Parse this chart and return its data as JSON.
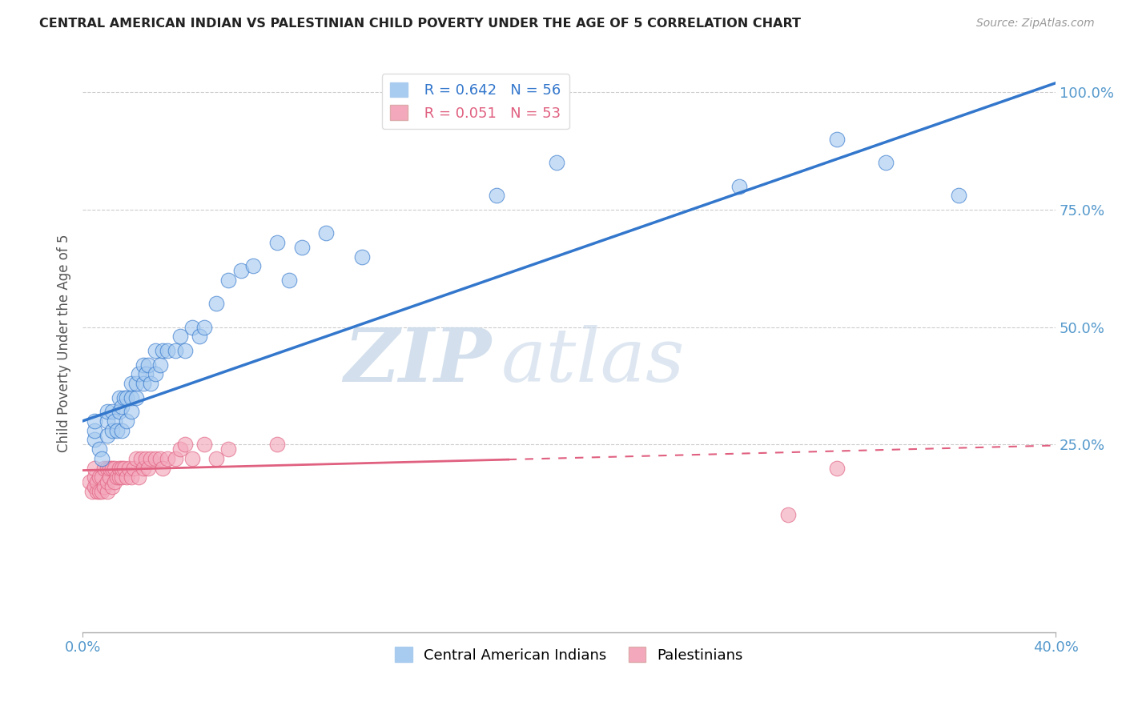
{
  "title": "CENTRAL AMERICAN INDIAN VS PALESTINIAN CHILD POVERTY UNDER THE AGE OF 5 CORRELATION CHART",
  "source": "Source: ZipAtlas.com",
  "ylabel": "Child Poverty Under the Age of 5",
  "xlim": [
    0.0,
    0.4
  ],
  "ylim": [
    -0.15,
    1.08
  ],
  "xtick_labels": [
    "0.0%",
    "40.0%"
  ],
  "xtick_positions": [
    0.0,
    0.4
  ],
  "ytick_labels": [
    "25.0%",
    "50.0%",
    "75.0%",
    "100.0%"
  ],
  "ytick_positions": [
    0.25,
    0.5,
    0.75,
    1.0
  ],
  "blue_color": "#A8CBF0",
  "pink_color": "#F4A8BC",
  "blue_line_color": "#3377CC",
  "pink_line_color": "#E06080",
  "legend_blue_R": "R = 0.642",
  "legend_blue_N": "N = 56",
  "legend_pink_R": "R = 0.051",
  "legend_pink_N": "N = 53",
  "watermark_zip": "ZIP",
  "watermark_atlas": "atlas",
  "blue_scatter_x": [
    0.005,
    0.005,
    0.005,
    0.007,
    0.008,
    0.01,
    0.01,
    0.01,
    0.012,
    0.012,
    0.013,
    0.014,
    0.015,
    0.015,
    0.016,
    0.016,
    0.017,
    0.018,
    0.018,
    0.02,
    0.02,
    0.02,
    0.022,
    0.022,
    0.023,
    0.025,
    0.025,
    0.026,
    0.027,
    0.028,
    0.03,
    0.03,
    0.032,
    0.033,
    0.035,
    0.038,
    0.04,
    0.042,
    0.045,
    0.048,
    0.05,
    0.055,
    0.06,
    0.065,
    0.07,
    0.08,
    0.085,
    0.09,
    0.1,
    0.115,
    0.17,
    0.195,
    0.27,
    0.31,
    0.33,
    0.36
  ],
  "blue_scatter_y": [
    0.26,
    0.28,
    0.3,
    0.24,
    0.22,
    0.27,
    0.3,
    0.32,
    0.28,
    0.32,
    0.3,
    0.28,
    0.32,
    0.35,
    0.28,
    0.33,
    0.35,
    0.3,
    0.35,
    0.32,
    0.35,
    0.38,
    0.35,
    0.38,
    0.4,
    0.38,
    0.42,
    0.4,
    0.42,
    0.38,
    0.4,
    0.45,
    0.42,
    0.45,
    0.45,
    0.45,
    0.48,
    0.45,
    0.5,
    0.48,
    0.5,
    0.55,
    0.6,
    0.62,
    0.63,
    0.68,
    0.6,
    0.67,
    0.7,
    0.65,
    0.78,
    0.85,
    0.8,
    0.9,
    0.85,
    0.78
  ],
  "pink_scatter_x": [
    0.003,
    0.004,
    0.005,
    0.005,
    0.005,
    0.006,
    0.006,
    0.007,
    0.007,
    0.008,
    0.008,
    0.009,
    0.009,
    0.01,
    0.01,
    0.01,
    0.011,
    0.011,
    0.012,
    0.012,
    0.013,
    0.013,
    0.014,
    0.015,
    0.015,
    0.016,
    0.016,
    0.017,
    0.018,
    0.019,
    0.02,
    0.021,
    0.022,
    0.023,
    0.024,
    0.025,
    0.026,
    0.027,
    0.028,
    0.03,
    0.032,
    0.033,
    0.035,
    0.038,
    0.04,
    0.042,
    0.045,
    0.05,
    0.055,
    0.06,
    0.08,
    0.29,
    0.31
  ],
  "pink_scatter_y": [
    0.17,
    0.15,
    0.16,
    0.18,
    0.2,
    0.15,
    0.17,
    0.15,
    0.18,
    0.15,
    0.18,
    0.16,
    0.2,
    0.15,
    0.17,
    0.2,
    0.18,
    0.2,
    0.16,
    0.2,
    0.17,
    0.2,
    0.18,
    0.18,
    0.2,
    0.18,
    0.2,
    0.2,
    0.18,
    0.2,
    0.18,
    0.2,
    0.22,
    0.18,
    0.22,
    0.2,
    0.22,
    0.2,
    0.22,
    0.22,
    0.22,
    0.2,
    0.22,
    0.22,
    0.24,
    0.25,
    0.22,
    0.25,
    0.22,
    0.24,
    0.25,
    0.1,
    0.2
  ],
  "blue_line_x": [
    0.0,
    0.4
  ],
  "blue_line_y": [
    0.3,
    1.02
  ],
  "pink_solid_line_x": [
    0.0,
    0.175
  ],
  "pink_solid_line_y": [
    0.195,
    0.218
  ],
  "pink_dashed_line_x": [
    0.175,
    0.4
  ],
  "pink_dashed_line_y": [
    0.218,
    0.248
  ],
  "grid_color": "#CCCCCC",
  "background_color": "#FFFFFF"
}
